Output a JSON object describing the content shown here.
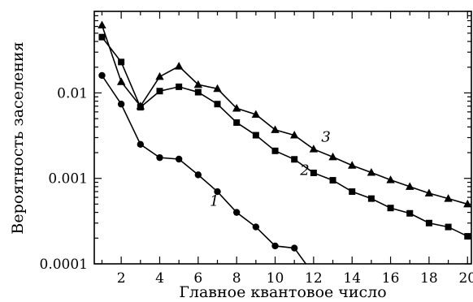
{
  "chart_data": {
    "type": "line",
    "title": "",
    "xlabel": "Главное квантовое число",
    "ylabel": "Вероятность заселения",
    "xlim": [
      0.6,
      20.2
    ],
    "ylim": [
      0.0001,
      0.09
    ],
    "yscale": "log",
    "grid": false,
    "legend": "none",
    "x_ticks": [
      2,
      4,
      6,
      8,
      10,
      12,
      14,
      16,
      18,
      20
    ],
    "x_tick_labels": [
      "2",
      "4",
      "6",
      "8",
      "10",
      "12",
      "14",
      "16",
      "18",
      "20"
    ],
    "y_ticks": [
      0.0001,
      0.001,
      0.01
    ],
    "y_tick_labels": [
      "0.0001",
      "0.001",
      "0.01"
    ],
    "series": [
      {
        "label": "1",
        "marker": "circle",
        "label_at": [
          6.6,
          0.00048
        ],
        "x": [
          1,
          2,
          3,
          4,
          5,
          6,
          7,
          8,
          9,
          10,
          11,
          12
        ],
        "y": [
          0.016,
          0.0074,
          0.0025,
          0.00175,
          0.00168,
          0.0011,
          0.0007,
          0.0004,
          0.00027,
          0.000162,
          0.000153,
          7.5e-05
        ]
      },
      {
        "label": "2",
        "marker": "square",
        "label_at": [
          11.3,
          0.0011
        ],
        "x": [
          1,
          2,
          3,
          4,
          5,
          6,
          7,
          8,
          9,
          10,
          11,
          12,
          13,
          14,
          15,
          16,
          17,
          18,
          19,
          20
        ],
        "y": [
          0.045,
          0.023,
          0.0068,
          0.0105,
          0.0118,
          0.0102,
          0.0074,
          0.0045,
          0.0032,
          0.0021,
          0.00167,
          0.00116,
          0.00095,
          0.0007,
          0.00058,
          0.00045,
          0.00039,
          0.0003,
          0.00027,
          0.00021
        ]
      },
      {
        "label": "3",
        "marker": "triangle",
        "label_at": [
          12.4,
          0.0027
        ],
        "x": [
          1,
          2,
          3,
          4,
          5,
          6,
          7,
          8,
          9,
          10,
          11,
          12,
          13,
          14,
          15,
          16,
          17,
          18,
          19,
          20
        ],
        "y": [
          0.062,
          0.0135,
          0.007,
          0.0155,
          0.0205,
          0.0125,
          0.0112,
          0.0066,
          0.0056,
          0.0037,
          0.0032,
          0.0022,
          0.00178,
          0.00142,
          0.00117,
          0.00096,
          0.0008,
          0.00067,
          0.00058,
          0.0005
        ]
      }
    ]
  }
}
